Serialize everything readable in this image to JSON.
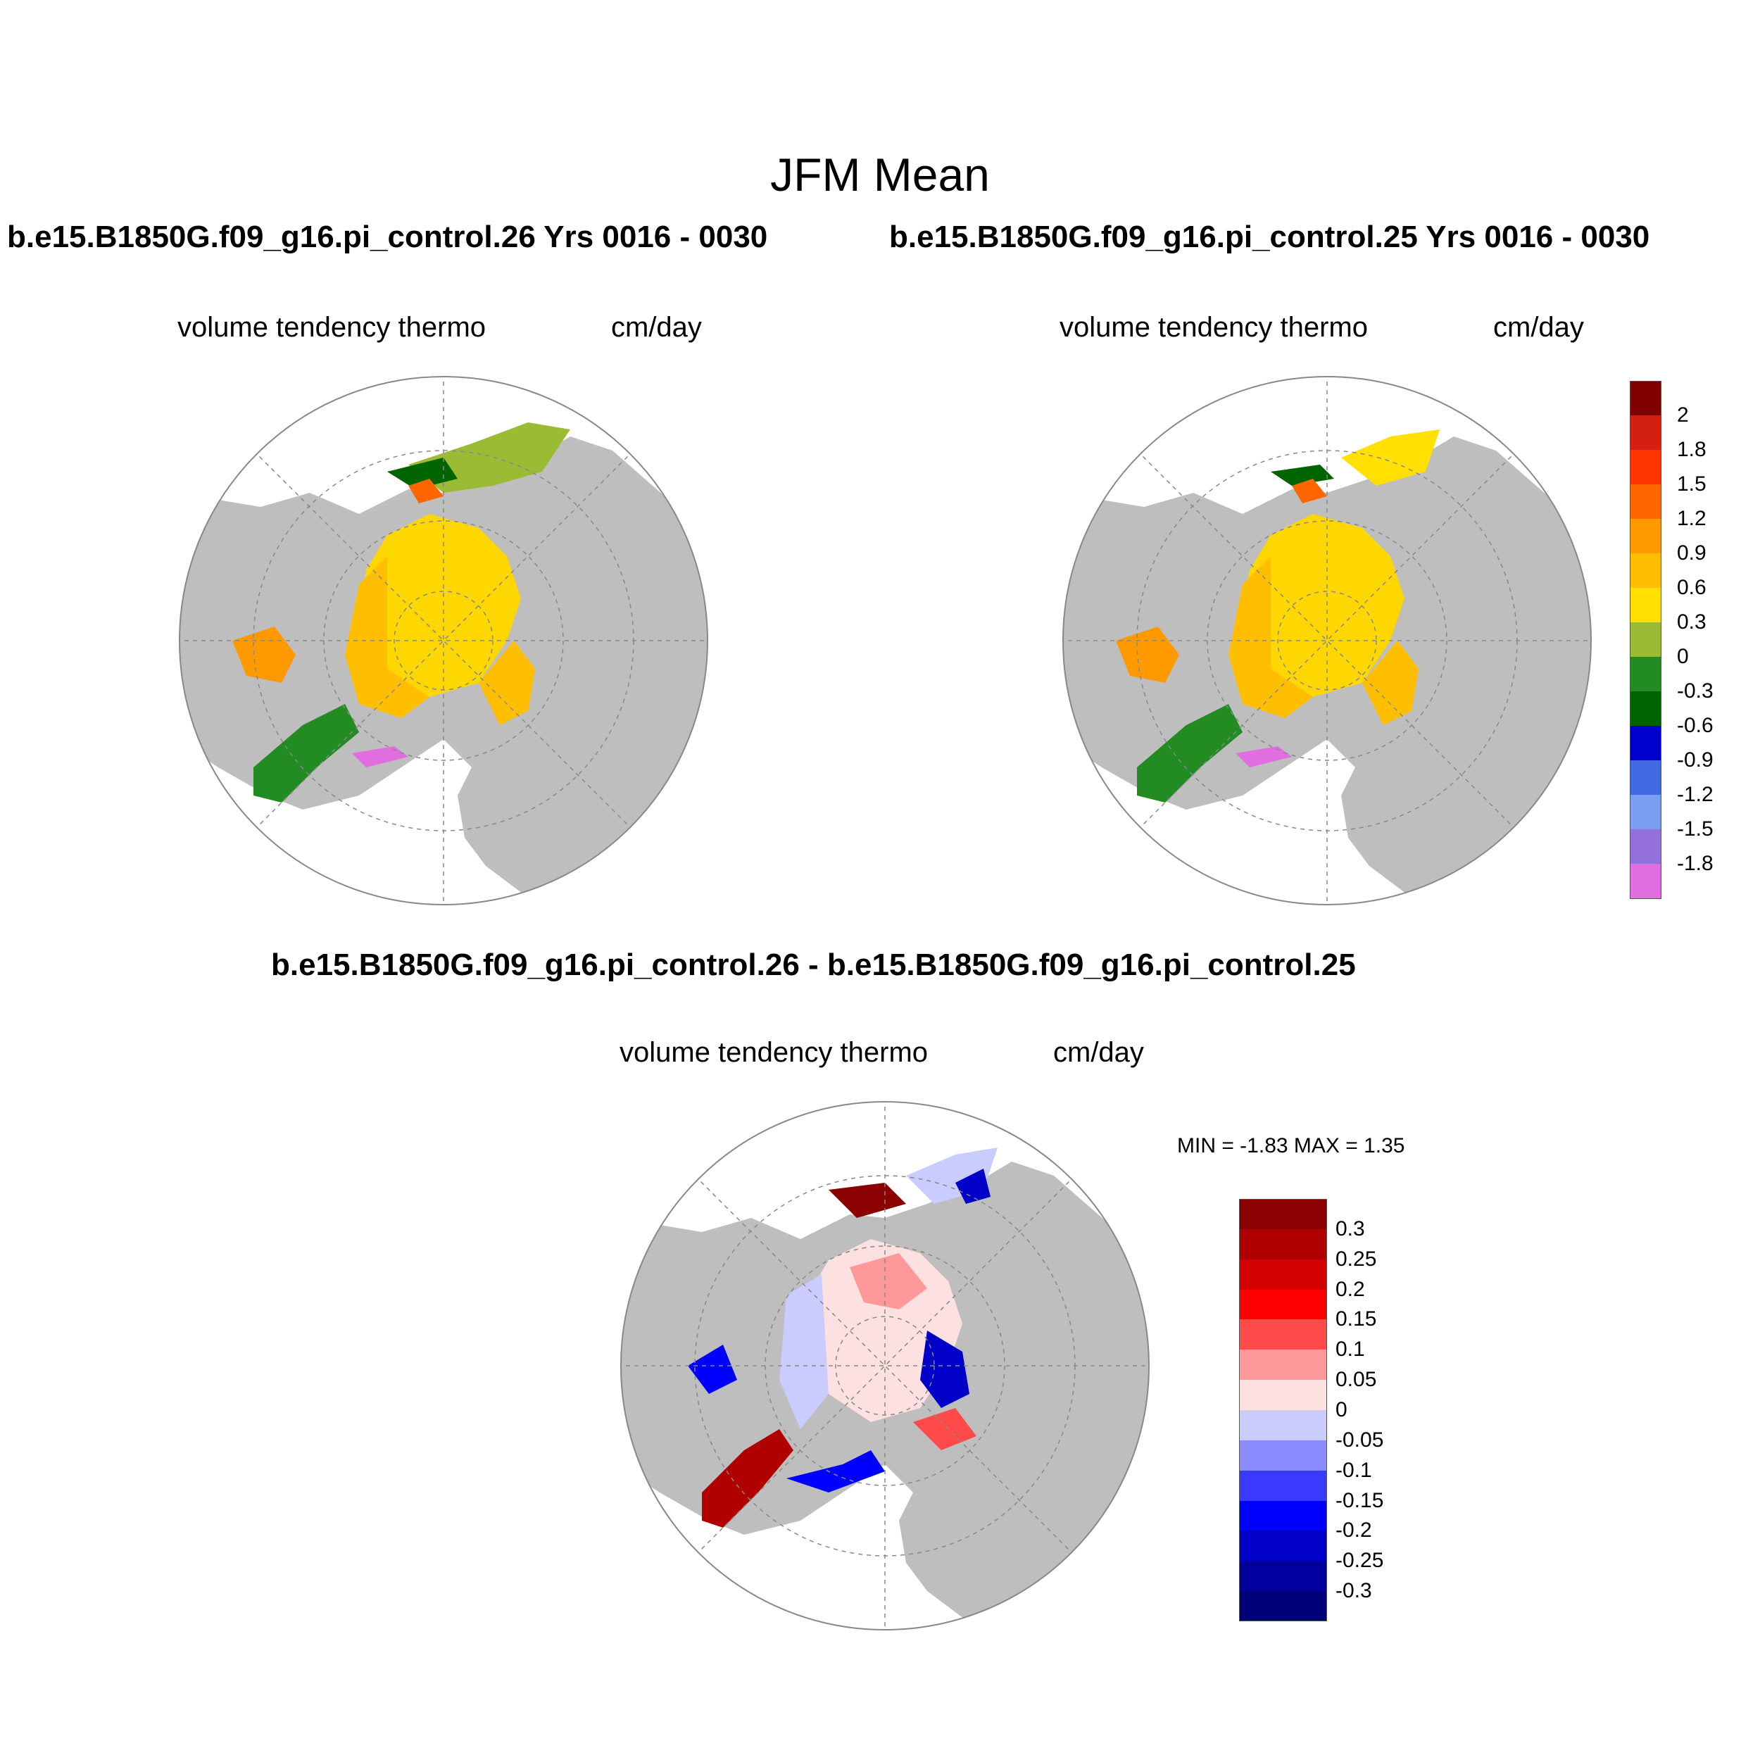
{
  "title": "JFM Mean",
  "panels": [
    {
      "id": "left",
      "case_title": "b.e15.B1850G.f09_g16.pi_control.26  Yrs 0016 - 0030",
      "variable": "volume tendency thermo",
      "units": "cm/day"
    },
    {
      "id": "right",
      "case_title": "b.e15.B1850G.f09_g16.pi_control.25  Yrs 0016 - 0030",
      "variable": "volume tendency thermo",
      "units": "cm/day"
    },
    {
      "id": "diff",
      "case_title": "b.e15.B1850G.f09_g16.pi_control.26 - b.e15.B1850G.f09_g16.pi_control.25",
      "variable": "volume tendency thermo",
      "units": "cm/day",
      "min_label": "MIN =  -1.83 MAX =   1.35",
      "min": -1.83,
      "max": 1.35
    }
  ],
  "colorbar_mean": {
    "labels": [
      "2",
      "1.8",
      "1.5",
      "1.2",
      "0.9",
      "0.6",
      "0.3",
      "0",
      "-0.3",
      "-0.6",
      "-0.9",
      "-1.2",
      "-1.5",
      "-1.8"
    ],
    "colors": [
      "#800000",
      "#d32010",
      "#ff3300",
      "#ff6600",
      "#ff9900",
      "#ffbf00",
      "#ffe000",
      "#9abb33",
      "#228b22",
      "#006400",
      "#0000cd",
      "#4169e1",
      "#7b9ff0",
      "#9370db",
      "#e06ee0"
    ]
  },
  "colorbar_diff": {
    "labels": [
      "0.3",
      "0.25",
      "0.2",
      "0.15",
      "0.1",
      "0.05",
      "0",
      "-0.05",
      "-0.1",
      "-0.15",
      "-0.2",
      "-0.25",
      "-0.3"
    ],
    "colors": [
      "#8b0000",
      "#b00000",
      "#d40000",
      "#ff0000",
      "#ff4a4a",
      "#ff9999",
      "#fde0e0",
      "#cacbff",
      "#8a8bff",
      "#3a3aff",
      "#0000ff",
      "#0000c8",
      "#00009e",
      "#00007a"
    ]
  },
  "colors": {
    "land": "#bebebe",
    "ocean": "#ffffff",
    "grid": "#888888"
  },
  "chart_data": {
    "type": "map",
    "projection": "north polar stereographic",
    "field": "volume tendency thermo",
    "units": "cm/day",
    "season": "JFM Mean",
    "panels": [
      "b.e15.B1850G.f09_g16.pi_control.26",
      "b.e15.B1850G.f09_g16.pi_control.25",
      "difference"
    ],
    "difference_min": -1.83,
    "difference_max": 1.35
  }
}
